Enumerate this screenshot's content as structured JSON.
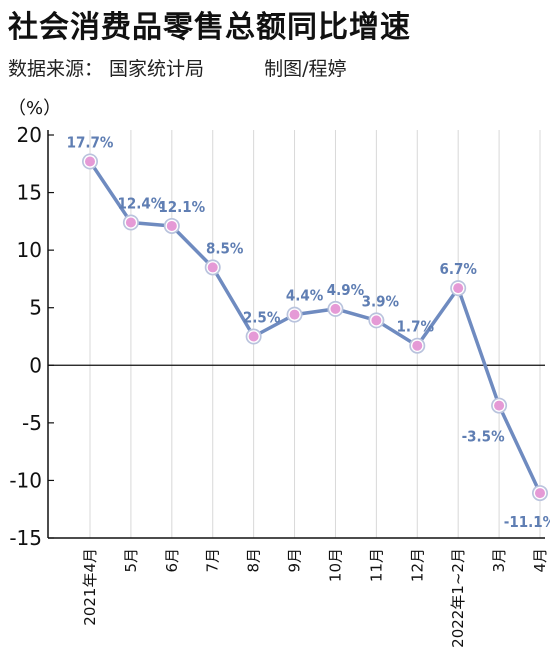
{
  "header": {
    "title": "社会消费品零售总额同比增速",
    "source": "数据来源： 国家统计局",
    "credit": "制图/程婷"
  },
  "colors": {
    "line": "#6f8bc0",
    "marker_fill": "#e59ad6",
    "marker_stroke": "#ffffff",
    "marker_ring": "#b9c3dd",
    "data_label": "#5f7eb3",
    "axis": "#111111",
    "grid": "#d8d8d8"
  },
  "chart_data": {
    "type": "line",
    "title": "社会消费品零售总额同比增速",
    "ylabel": "（%）",
    "ylim": [
      -15,
      20
    ],
    "yticks": [
      20,
      15,
      10,
      5,
      0,
      -5,
      -10,
      -15
    ],
    "ytick_labels": [
      "20",
      "15",
      "10",
      "5",
      "0",
      "-5",
      "-10",
      "-15"
    ],
    "grid": "vertical",
    "categories": [
      "2021年4月",
      "5月",
      "6月",
      "7月",
      "8月",
      "9月",
      "10月",
      "11月",
      "12月",
      "2022年1~2月",
      "3月",
      "4月"
    ],
    "values": [
      17.7,
      12.4,
      12.1,
      8.5,
      2.5,
      4.4,
      4.9,
      3.9,
      1.7,
      6.7,
      -3.5,
      -11.1
    ],
    "data_labels": [
      "17.7%",
      "12.4%",
      "12.1%",
      "8.5%",
      "2.5%",
      "4.4%",
      "4.9%",
      "3.9%",
      "1.7%",
      "6.7%",
      "-3.5%",
      "-11.1%"
    ]
  }
}
